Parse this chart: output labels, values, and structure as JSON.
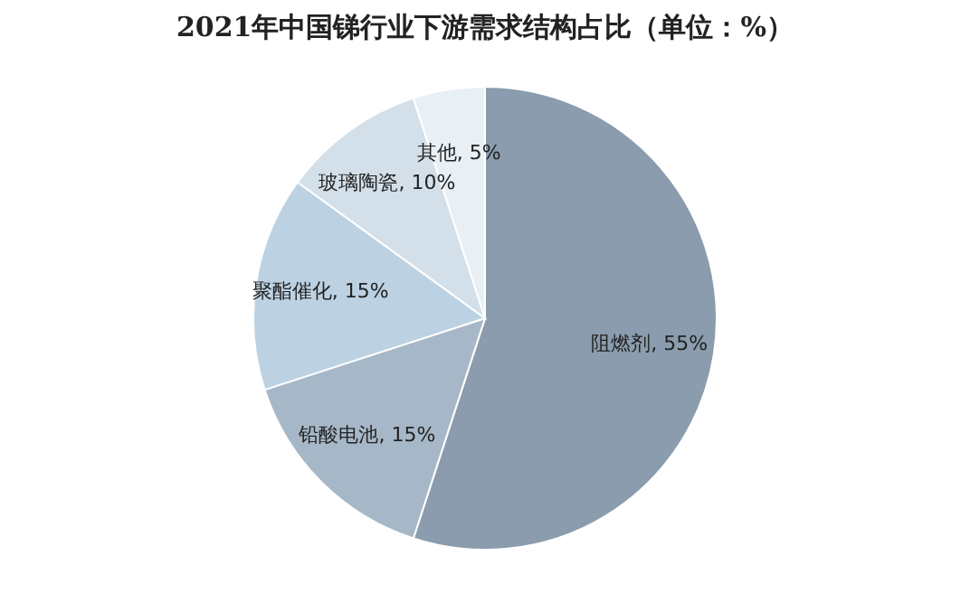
{
  "chart_data": {
    "type": "pie",
    "title": "2021年中国锑行业下游需求结构占比（单位：%）",
    "categories": [
      "阻燃剂",
      "铅酸电池",
      "聚酯催化",
      "玻璃陶瓷",
      "其他"
    ],
    "values": [
      55,
      15,
      15,
      10,
      5
    ],
    "value_labels": [
      "55%",
      "15%",
      "15%",
      "10%",
      "5%"
    ],
    "colors": [
      "#8a9cad",
      "#a6b8c8",
      "#bcd2e3",
      "#d3e0ea",
      "#e8eff5"
    ]
  }
}
